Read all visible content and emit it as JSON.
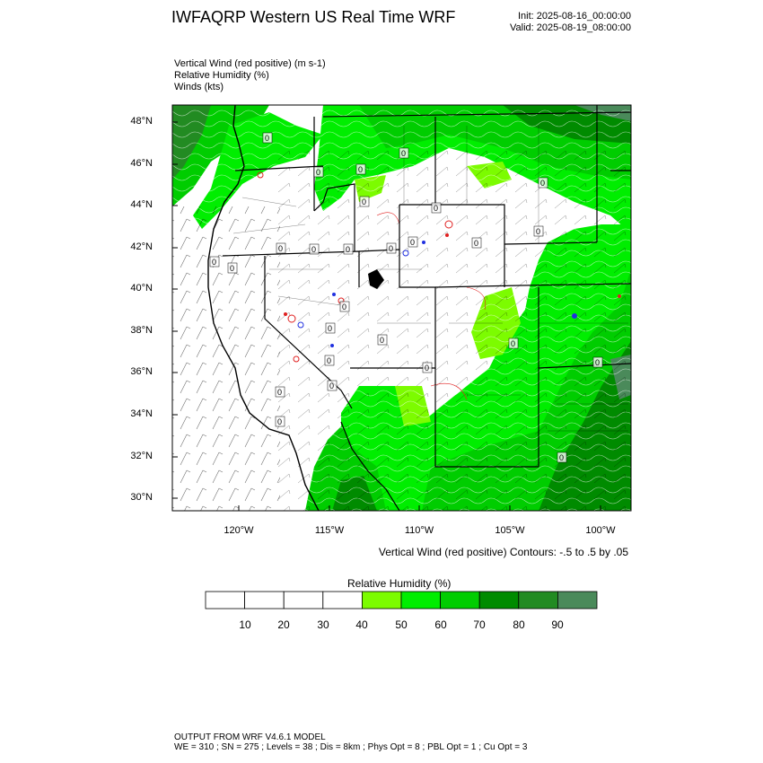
{
  "header": {
    "title": "IWFAQRP Western US Real Time WRF",
    "init": "Init: 2025-08-16_00:00:00",
    "valid": "Valid: 2025-08-19_08:00:00"
  },
  "fields": [
    "Vertical Wind (red positive)   (m s-1)",
    "Relative Humidity   (%)",
    "Winds   (kts)"
  ],
  "map": {
    "lat_labels": [
      "48°N",
      "46°N",
      "44°N",
      "42°N",
      "40°N",
      "38°N",
      "36°N",
      "34°N",
      "32°N",
      "30°N"
    ],
    "lon_labels": [
      "120°W",
      "115°W",
      "110°W",
      "105°W",
      "100°W"
    ],
    "contour_zero_label": "0",
    "colors": {
      "dry": "#ffffff",
      "border": "#000000",
      "updraft": "#e02020",
      "downdraft": "#2030e0"
    }
  },
  "contour_note": "Vertical Wind (red positive) Contours: -.5 to .5 by .05",
  "colorbar": {
    "title": "Relative Humidity   (%)",
    "labels": [
      "10",
      "20",
      "30",
      "40",
      "50",
      "60",
      "70",
      "80",
      "90"
    ],
    "colors": [
      "#ffffff",
      "#ffffff",
      "#ffffff",
      "#ffffff",
      "#7cfc00",
      "#00ee00",
      "#00cd00",
      "#008b00",
      "#228b22",
      "#4a8a5a"
    ]
  },
  "footer": {
    "line1": "OUTPUT FROM WRF V4.6.1 MODEL",
    "line2": "WE = 310 ; SN = 275 ; Levels = 38 ; Dis = 8km ; Phys Opt = 8 ; PBL Opt = 1 ; Cu Opt = 3"
  }
}
